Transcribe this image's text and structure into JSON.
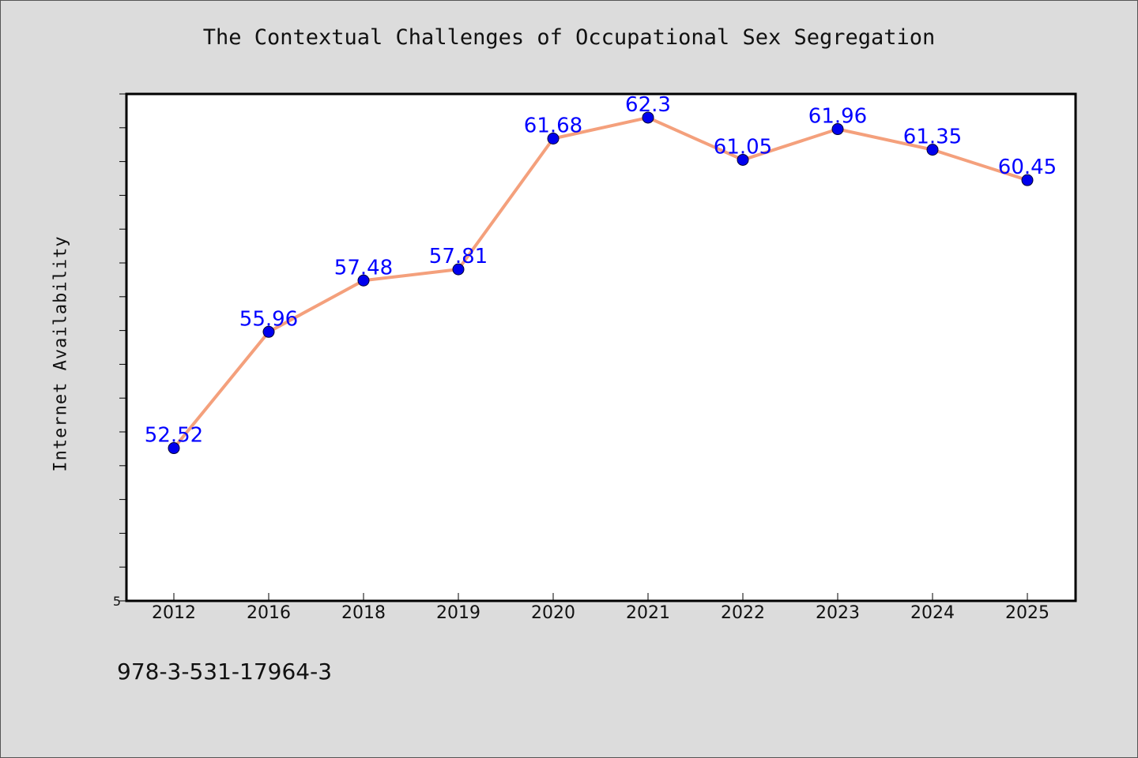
{
  "chart_data": {
    "type": "line",
    "title": "The Contextual Challenges of Occupational Sex Segregation",
    "xlabel": "",
    "ylabel": "Internet Availability",
    "categories": [
      "2012",
      "2016",
      "2018",
      "2019",
      "2020",
      "2021",
      "2022",
      "2023",
      "2024",
      "2025"
    ],
    "series": [
      {
        "values": [
          52.52,
          55.96,
          57.48,
          57.81,
          61.68,
          62.3,
          61.05,
          61.96,
          61.35,
          60.45
        ],
        "labels": [
          "52.52",
          "55.96",
          "57.48",
          "57.81",
          "61.68",
          "62.3",
          "61.05",
          "61.96",
          "61.35",
          "60.45"
        ],
        "line_color": "#f4a07c",
        "marker_color": "#0000ee",
        "label_color": "#0000ff"
      }
    ],
    "ylim": [
      48,
      63
    ],
    "y_tick_labels": [
      {
        "value": 48,
        "label": "5"
      }
    ],
    "grid": false,
    "legend": false
  },
  "footer": {
    "identifier": "978-3-531-17964-3"
  }
}
